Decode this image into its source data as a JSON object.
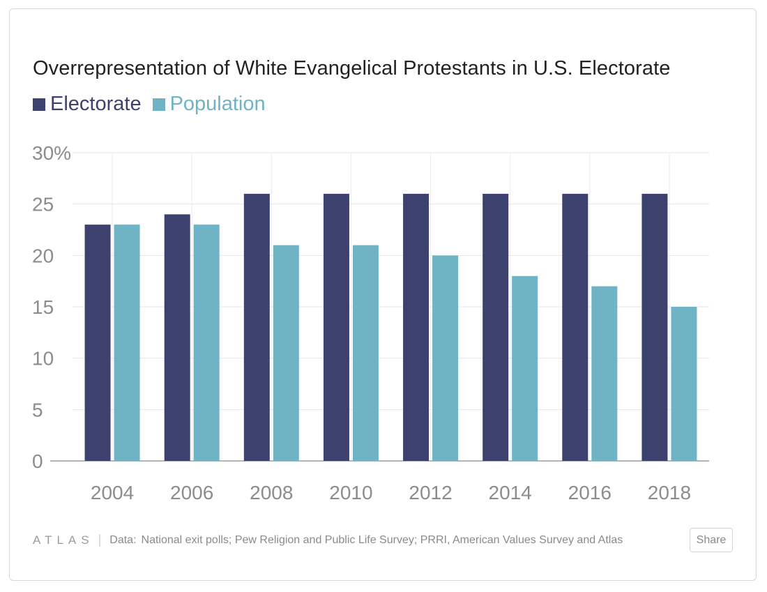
{
  "chart_data": {
    "type": "bar",
    "title": "Overrepresentation of White Evangelical Protestants in U.S. Electorate",
    "categories": [
      "2004",
      "2006",
      "2008",
      "2010",
      "2012",
      "2014",
      "2016",
      "2018"
    ],
    "series": [
      {
        "name": "Electorate",
        "color": "#3d416d",
        "values": [
          23,
          24,
          26,
          26,
          26,
          26,
          26,
          26
        ]
      },
      {
        "name": "Population",
        "color": "#70b3c5",
        "values": [
          23,
          23,
          21,
          21,
          20,
          18,
          17,
          15
        ]
      }
    ],
    "ylim": [
      0,
      30
    ],
    "yticks": [
      0,
      5,
      10,
      15,
      20,
      25,
      30
    ],
    "ytick_labels": [
      "0",
      "5",
      "10",
      "15",
      "20",
      "25",
      "30%"
    ],
    "grid": true,
    "legend_position": "top-left"
  },
  "footer": {
    "logo": "ATLAS",
    "separator": "|",
    "source_label": "Data:",
    "source_text": "National exit polls; Pew Religion and Public Life Survey; PRRI, American Values Survey and Atlas"
  },
  "share_button": {
    "label": "Share"
  }
}
